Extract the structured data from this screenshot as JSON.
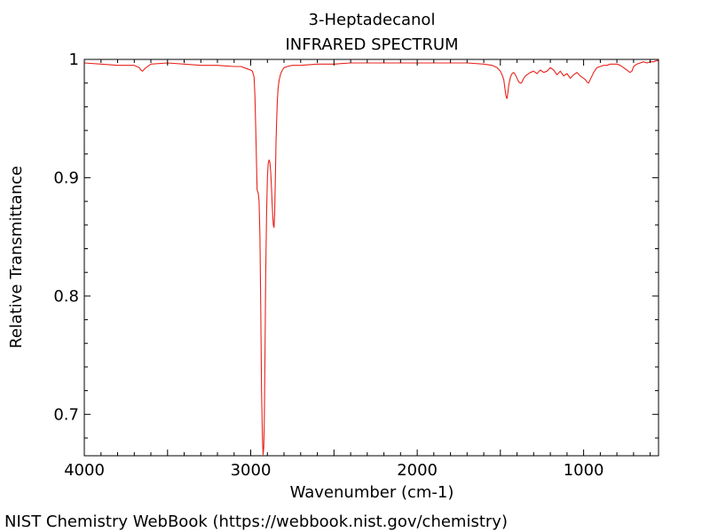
{
  "chart_data": {
    "type": "line",
    "title": "3-Heptadecanol",
    "subtitle": "INFRARED SPECTRUM",
    "xlabel": "Wavenumber (cm-1)",
    "ylabel": "Relative Transmittance",
    "footer": "NIST Chemistry WebBook (https://webbook.nist.gov/chemistry)",
    "xlim": [
      4000,
      550
    ],
    "ylim": [
      0.665,
      1.0
    ],
    "x_ticks": [
      4000,
      3000,
      2000,
      1000
    ],
    "x_tick_labels": [
      "4000",
      "3000",
      "2000",
      "1000"
    ],
    "y_ticks": [
      0.7,
      0.8,
      0.9,
      1.0
    ],
    "y_tick_labels": [
      "0.7",
      "0.8",
      "0.9",
      "1"
    ],
    "grid": false,
    "series_color": "#e8231b",
    "series": [
      {
        "x": [
          4000,
          3900,
          3800,
          3700,
          3670,
          3660,
          3650,
          3630,
          3600,
          3500,
          3400,
          3300,
          3200,
          3100,
          3060,
          3040,
          3020,
          3000,
          2990,
          2980,
          2975,
          2970,
          2965,
          2962,
          2958,
          2955,
          2950,
          2945,
          2940,
          2935,
          2930,
          2926,
          2922,
          2918,
          2914,
          2910,
          2905,
          2900,
          2895,
          2890,
          2885,
          2880,
          2876,
          2872,
          2868,
          2864,
          2860,
          2856,
          2852,
          2848,
          2844,
          2840,
          2836,
          2830,
          2820,
          2810,
          2800,
          2780,
          2750,
          2700,
          2600,
          2500,
          2400,
          2300,
          2200,
          2100,
          2000,
          1900,
          1800,
          1700,
          1600,
          1550,
          1520,
          1500,
          1490,
          1480,
          1475,
          1470,
          1465,
          1460,
          1455,
          1450,
          1440,
          1430,
          1420,
          1410,
          1400,
          1390,
          1380,
          1375,
          1370,
          1360,
          1350,
          1340,
          1320,
          1300,
          1280,
          1260,
          1240,
          1220,
          1200,
          1180,
          1160,
          1140,
          1120,
          1100,
          1080,
          1060,
          1040,
          1020,
          1000,
          990,
          980,
          970,
          960,
          950,
          940,
          930,
          920,
          900,
          880,
          860,
          840,
          820,
          800,
          780,
          760,
          740,
          722,
          710,
          700,
          680,
          660,
          640,
          620,
          600,
          580,
          560,
          550
        ],
        "y": [
          0.997,
          0.996,
          0.995,
          0.995,
          0.993,
          0.991,
          0.99,
          0.993,
          0.996,
          0.997,
          0.996,
          0.995,
          0.995,
          0.994,
          0.994,
          0.993,
          0.992,
          0.991,
          0.99,
          0.985,
          0.97,
          0.94,
          0.91,
          0.89,
          0.888,
          0.887,
          0.88,
          0.85,
          0.79,
          0.72,
          0.68,
          0.666,
          0.672,
          0.7,
          0.76,
          0.82,
          0.87,
          0.9,
          0.912,
          0.915,
          0.913,
          0.905,
          0.893,
          0.88,
          0.868,
          0.86,
          0.858,
          0.87,
          0.9,
          0.93,
          0.95,
          0.965,
          0.975,
          0.982,
          0.988,
          0.991,
          0.993,
          0.994,
          0.995,
          0.995,
          0.996,
          0.996,
          0.997,
          0.997,
          0.997,
          0.997,
          0.997,
          0.997,
          0.997,
          0.997,
          0.996,
          0.995,
          0.993,
          0.99,
          0.987,
          0.983,
          0.978,
          0.972,
          0.968,
          0.967,
          0.972,
          0.978,
          0.985,
          0.988,
          0.989,
          0.987,
          0.984,
          0.981,
          0.98,
          0.98,
          0.981,
          0.984,
          0.986,
          0.987,
          0.989,
          0.99,
          0.988,
          0.991,
          0.989,
          0.99,
          0.993,
          0.991,
          0.987,
          0.99,
          0.986,
          0.988,
          0.984,
          0.987,
          0.989,
          0.986,
          0.984,
          0.983,
          0.981,
          0.98,
          0.983,
          0.986,
          0.989,
          0.991,
          0.993,
          0.994,
          0.995,
          0.995,
          0.996,
          0.996,
          0.996,
          0.995,
          0.993,
          0.991,
          0.989,
          0.99,
          0.994,
          0.996,
          0.997,
          0.998,
          0.997,
          0.998,
          0.998,
          0.999,
          0.999
        ]
      }
    ]
  }
}
